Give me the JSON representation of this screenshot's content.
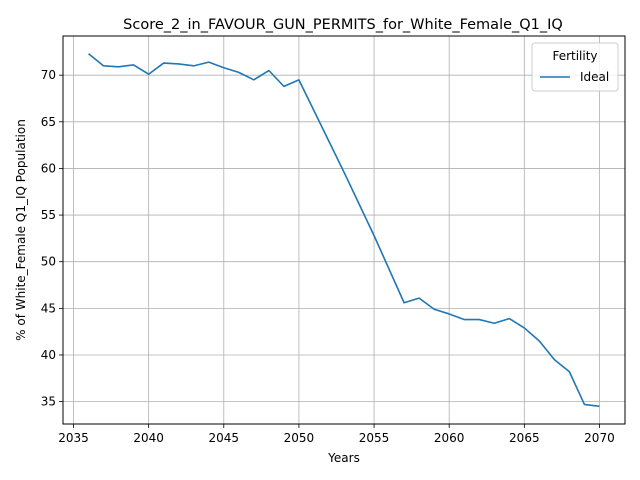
{
  "chart_data": {
    "type": "line",
    "title": "Score_2_in_FAVOUR_GUN_PERMITS_for_White_Female_Q1_IQ",
    "xlabel": "Years",
    "ylabel": "% of White_Female Q1_IQ Population",
    "xlim": [
      2034.3,
      2071.7
    ],
    "ylim": [
      32.6,
      74.2
    ],
    "xticks": [
      2035,
      2040,
      2045,
      2050,
      2055,
      2060,
      2065,
      2070
    ],
    "yticks": [
      35,
      40,
      45,
      50,
      55,
      60,
      65,
      70
    ],
    "grid": true,
    "legend": {
      "title": "Fertility",
      "position": "top-right"
    },
    "series": [
      {
        "name": "Ideal",
        "color": "#1f77b4",
        "x": [
          2036,
          2037,
          2038,
          2039,
          2040,
          2041,
          2042,
          2043,
          2044,
          2045,
          2046,
          2047,
          2048,
          2049,
          2050,
          2051,
          2052,
          2053,
          2054,
          2055,
          2056,
          2057,
          2058,
          2059,
          2060,
          2061,
          2062,
          2063,
          2064,
          2065,
          2066,
          2067,
          2068,
          2069,
          2070
        ],
        "values": [
          72.3,
          71.0,
          70.9,
          71.1,
          70.1,
          71.3,
          71.2,
          71.0,
          71.4,
          70.8,
          70.3,
          69.5,
          70.5,
          68.8,
          69.5,
          66.2,
          62.9,
          59.6,
          56.2,
          52.8,
          49.2,
          45.6,
          46.1,
          44.9,
          44.4,
          43.8,
          43.8,
          43.4,
          43.9,
          42.9,
          41.5,
          39.5,
          38.2,
          34.7,
          34.5
        ]
      }
    ]
  }
}
